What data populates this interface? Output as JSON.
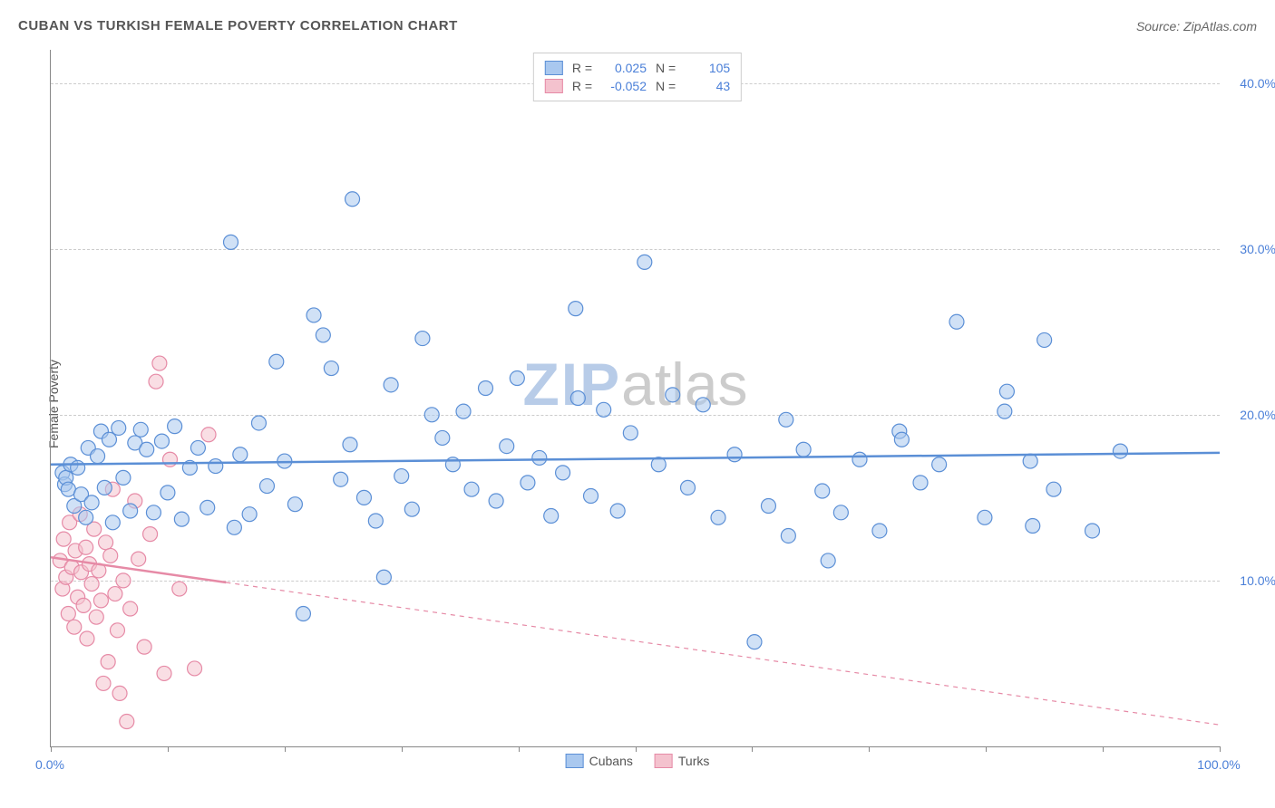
{
  "title": "CUBAN VS TURKISH FEMALE POVERTY CORRELATION CHART",
  "source_label": "Source: ZipAtlas.com",
  "ylabel": "Female Poverty",
  "watermark": {
    "bold": "ZIP",
    "rest": "atlas"
  },
  "chart": {
    "type": "scatter",
    "background_color": "#ffffff",
    "grid_color": "#cccccc",
    "axis_color": "#888888",
    "xlim": [
      0,
      100
    ],
    "ylim": [
      0,
      42
    ],
    "ytick_step": 10,
    "yticks": [
      10,
      20,
      30,
      40
    ],
    "ytick_labels": [
      "10.0%",
      "20.0%",
      "30.0%",
      "40.0%"
    ],
    "xticks": [
      0,
      10,
      20,
      30,
      40,
      50,
      60,
      70,
      80,
      90,
      100
    ],
    "xtick_labels_shown": {
      "0": "0.0%",
      "100": "100.0%"
    },
    "tick_label_color": "#4a7fd8",
    "tick_label_fontsize": 14,
    "title_fontsize": 15,
    "marker_radius": 8,
    "marker_opacity": 0.55,
    "line_width": 2.5
  },
  "series": {
    "cubans": {
      "label": "Cubans",
      "color_fill": "#a9c8ef",
      "color_stroke": "#5b8fd6",
      "R": "0.025",
      "N": "105",
      "trend": {
        "y_at_x0": 17.0,
        "y_at_x100": 17.7,
        "solid_until_x": 100
      },
      "points": [
        [
          1,
          16.5
        ],
        [
          1.2,
          15.8
        ],
        [
          1.3,
          16.2
        ],
        [
          1.5,
          15.5
        ],
        [
          1.7,
          17
        ],
        [
          2,
          14.5
        ],
        [
          2.3,
          16.8
        ],
        [
          2.6,
          15.2
        ],
        [
          3,
          13.8
        ],
        [
          3.2,
          18
        ],
        [
          3.5,
          14.7
        ],
        [
          4,
          17.5
        ],
        [
          4.3,
          19
        ],
        [
          4.6,
          15.6
        ],
        [
          5,
          18.5
        ],
        [
          5.3,
          13.5
        ],
        [
          5.8,
          19.2
        ],
        [
          6.2,
          16.2
        ],
        [
          6.8,
          14.2
        ],
        [
          7.2,
          18.3
        ],
        [
          7.7,
          19.1
        ],
        [
          8.2,
          17.9
        ],
        [
          8.8,
          14.1
        ],
        [
          9.5,
          18.4
        ],
        [
          10,
          15.3
        ],
        [
          10.6,
          19.3
        ],
        [
          11.2,
          13.7
        ],
        [
          11.9,
          16.8
        ],
        [
          12.6,
          18.0
        ],
        [
          13.4,
          14.4
        ],
        [
          14.1,
          16.9
        ],
        [
          15.4,
          30.4
        ],
        [
          15.7,
          13.2
        ],
        [
          16.2,
          17.6
        ],
        [
          17,
          14.0
        ],
        [
          17.8,
          19.5
        ],
        [
          18.5,
          15.7
        ],
        [
          19.3,
          23.2
        ],
        [
          20,
          17.2
        ],
        [
          20.9,
          14.6
        ],
        [
          21.6,
          8.0
        ],
        [
          22.5,
          26.0
        ],
        [
          23.3,
          24.8
        ],
        [
          24,
          22.8
        ],
        [
          24.8,
          16.1
        ],
        [
          25.6,
          18.2
        ],
        [
          25.8,
          33.0
        ],
        [
          26.8,
          15.0
        ],
        [
          27.8,
          13.6
        ],
        [
          28.5,
          10.2
        ],
        [
          29.1,
          21.8
        ],
        [
          30.0,
          16.3
        ],
        [
          30.9,
          14.3
        ],
        [
          31.8,
          24.6
        ],
        [
          32.6,
          20.0
        ],
        [
          33.5,
          18.6
        ],
        [
          34.4,
          17.0
        ],
        [
          35.3,
          20.2
        ],
        [
          36,
          15.5
        ],
        [
          37.2,
          21.6
        ],
        [
          38.1,
          14.8
        ],
        [
          39,
          18.1
        ],
        [
          39.9,
          22.2
        ],
        [
          40.8,
          15.9
        ],
        [
          41.8,
          17.4
        ],
        [
          42.8,
          13.9
        ],
        [
          43.8,
          16.5
        ],
        [
          44.9,
          26.4
        ],
        [
          45.1,
          21.0
        ],
        [
          46.2,
          15.1
        ],
        [
          47.3,
          20.3
        ],
        [
          48.5,
          14.2
        ],
        [
          49.6,
          18.9
        ],
        [
          50.8,
          29.2
        ],
        [
          52,
          17.0
        ],
        [
          53.2,
          21.2
        ],
        [
          54.5,
          15.6
        ],
        [
          55.8,
          20.6
        ],
        [
          57.1,
          13.8
        ],
        [
          58.5,
          17.6
        ],
        [
          60.2,
          6.3
        ],
        [
          61.4,
          14.5
        ],
        [
          62.9,
          19.7
        ],
        [
          63.1,
          12.7
        ],
        [
          64.4,
          17.9
        ],
        [
          66,
          15.4
        ],
        [
          66.5,
          11.2
        ],
        [
          67.6,
          14.1
        ],
        [
          69.2,
          17.3
        ],
        [
          70.9,
          13.0
        ],
        [
          72.6,
          19.0
        ],
        [
          72.8,
          18.5
        ],
        [
          74.4,
          15.9
        ],
        [
          76,
          17.0
        ],
        [
          77.5,
          25.6
        ],
        [
          79.9,
          13.8
        ],
        [
          81.8,
          21.4
        ],
        [
          81.6,
          20.2
        ],
        [
          83.8,
          17.2
        ],
        [
          84.0,
          13.3
        ],
        [
          85.0,
          24.5
        ],
        [
          85.8,
          15.5
        ],
        [
          89.1,
          13.0
        ],
        [
          91.5,
          17.8
        ]
      ]
    },
    "turks": {
      "label": "Turks",
      "color_fill": "#f4c2ce",
      "color_stroke": "#e68aa6",
      "R": "-0.052",
      "N": "43",
      "trend": {
        "y_at_x0": 11.4,
        "y_at_x100": 1.3,
        "solid_until_x": 15
      },
      "points": [
        [
          0.8,
          11.2
        ],
        [
          1.0,
          9.5
        ],
        [
          1.1,
          12.5
        ],
        [
          1.3,
          10.2
        ],
        [
          1.5,
          8.0
        ],
        [
          1.6,
          13.5
        ],
        [
          1.8,
          10.8
        ],
        [
          2.0,
          7.2
        ],
        [
          2.1,
          11.8
        ],
        [
          2.3,
          9.0
        ],
        [
          2.5,
          14.0
        ],
        [
          2.6,
          10.5
        ],
        [
          2.8,
          8.5
        ],
        [
          3.0,
          12.0
        ],
        [
          3.1,
          6.5
        ],
        [
          3.3,
          11.0
        ],
        [
          3.5,
          9.8
        ],
        [
          3.7,
          13.1
        ],
        [
          3.9,
          7.8
        ],
        [
          4.1,
          10.6
        ],
        [
          4.3,
          8.8
        ],
        [
          4.5,
          3.8
        ],
        [
          4.7,
          12.3
        ],
        [
          4.9,
          5.1
        ],
        [
          5.1,
          11.5
        ],
        [
          5.3,
          15.5
        ],
        [
          5.5,
          9.2
        ],
        [
          5.7,
          7.0
        ],
        [
          5.9,
          3.2
        ],
        [
          6.2,
          10.0
        ],
        [
          6.5,
          1.5
        ],
        [
          6.8,
          8.3
        ],
        [
          7.2,
          14.8
        ],
        [
          7.5,
          11.3
        ],
        [
          8.0,
          6.0
        ],
        [
          8.5,
          12.8
        ],
        [
          9.0,
          22.0
        ],
        [
          9.3,
          23.1
        ],
        [
          9.7,
          4.4
        ],
        [
          10.2,
          17.3
        ],
        [
          11.0,
          9.5
        ],
        [
          12.3,
          4.7
        ],
        [
          13.5,
          18.8
        ]
      ]
    }
  },
  "legend_top": {
    "r_label": "R =",
    "n_label": "N ="
  },
  "legend_bottom": [
    {
      "key": "cubans"
    },
    {
      "key": "turks"
    }
  ]
}
